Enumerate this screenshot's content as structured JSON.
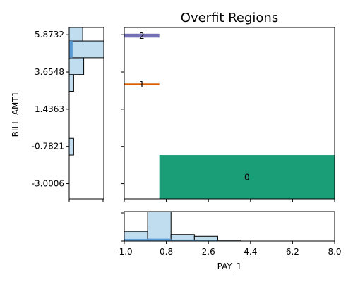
{
  "chart_data": {
    "type": "region-plot-with-marginals",
    "title": "Overfit Regions",
    "xlabel": "PAY_1",
    "ylabel": "BILL_AMT1",
    "xlim": [
      -1.0,
      8.0
    ],
    "ylim": [
      -3.9,
      6.3
    ],
    "x_ticks": [
      "-1.0",
      "0.8",
      "2.6",
      "4.4",
      "6.2",
      "8.0"
    ],
    "x_tick_values": [
      -1.0,
      0.8,
      2.6,
      4.4,
      6.2,
      8.0
    ],
    "y_ticks": [
      "5.8732",
      "3.6548",
      "1.4363",
      "-0.7821",
      "-3.0006"
    ],
    "y_tick_values": [
      5.8732,
      3.6548,
      1.4363,
      -0.7821,
      -3.0006
    ],
    "regions": [
      {
        "label": "0",
        "x0": 0.5,
        "x1": 8.0,
        "y0": -3.9,
        "y1": -1.3,
        "color": "#1a9e77"
      },
      {
        "label": "1",
        "x0": -1.0,
        "x1": 0.5,
        "y0": 2.91,
        "y1": 2.95,
        "color": "#d95f02"
      },
      {
        "label": "2",
        "x0": -1.0,
        "x1": 0.5,
        "y0": 5.7,
        "y1": 5.93,
        "color": "#7570b3"
      }
    ],
    "top_hist": {
      "bins": [
        [
          -1.0,
          0.0
        ],
        [
          0.0,
          1.0
        ],
        [
          1.0,
          2.0
        ],
        [
          2.0,
          3.0
        ],
        [
          3.0,
          4.0
        ]
      ],
      "values": [
        0.33,
        1.0,
        0.22,
        0.16,
        0.03
      ],
      "overlay": [
        {
          "x0": -1.0,
          "x1": 0.0,
          "value": 0.07
        },
        {
          "x0": 0.0,
          "x1": 1.0,
          "value": 0.08
        },
        {
          "x0": 1.0,
          "x1": 2.0,
          "value": 0.05
        },
        {
          "x0": 2.0,
          "x1": 3.0,
          "value": 0.03
        }
      ]
    },
    "left_hist": {
      "bins": [
        [
          -1.3,
          -0.3
        ],
        [
          2.5,
          3.5
        ],
        [
          3.5,
          4.5
        ],
        [
          4.5,
          5.5
        ],
        [
          5.5,
          6.3
        ]
      ],
      "values": [
        0.13,
        0.13,
        0.42,
        1.0,
        0.39
      ],
      "overlay": [
        {
          "y0": 4.5,
          "y1": 5.5,
          "value": 0.1
        }
      ]
    },
    "colors": {
      "hist_fill": "#c0dcef",
      "hist_edge": "#000000",
      "overlay_fill": "#5b9bd5"
    }
  }
}
